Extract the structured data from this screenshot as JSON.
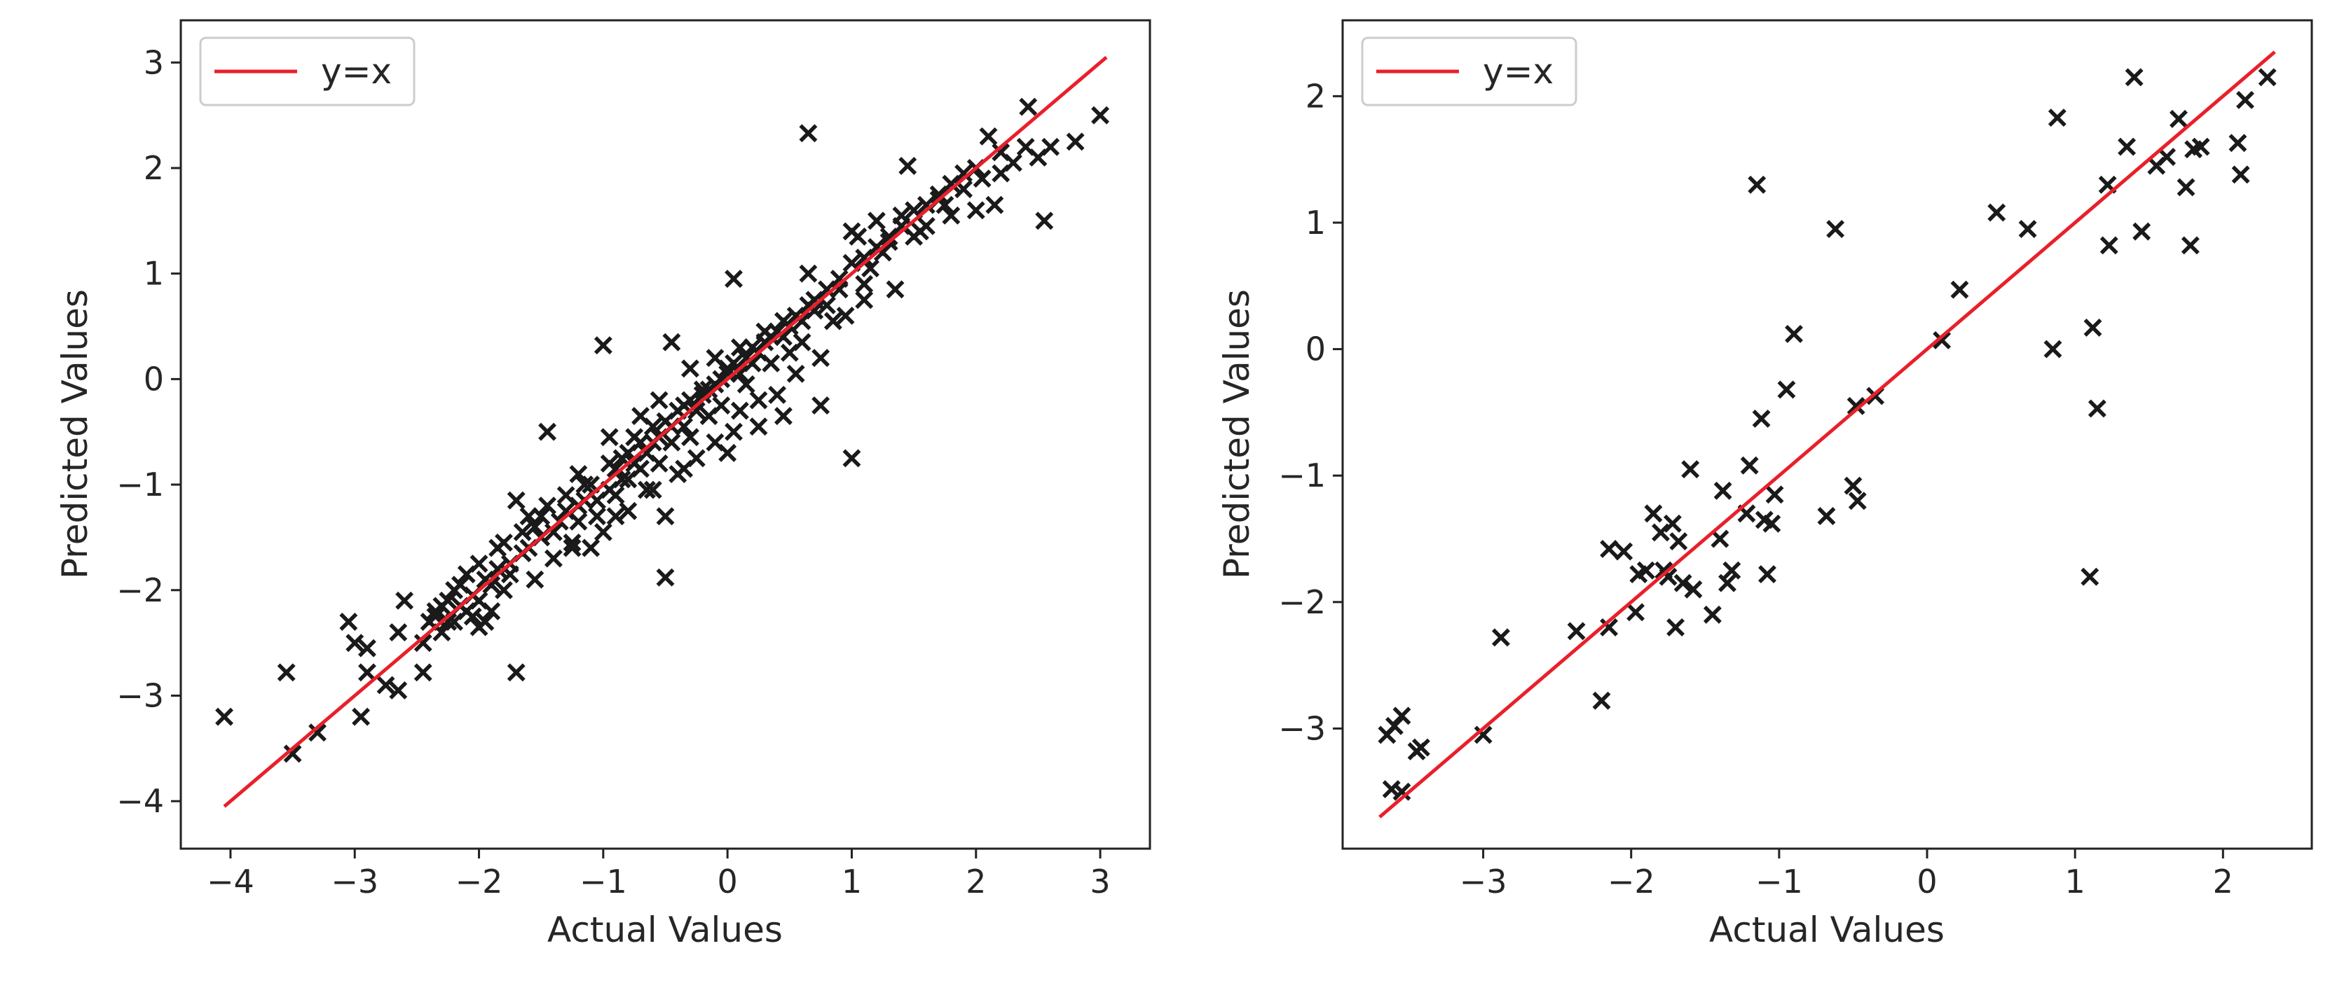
{
  "colors": {
    "marker": "#1a1a1a",
    "line": "#e8202a",
    "axes": "#222222",
    "legend_border": "#cccccc"
  },
  "chart_data": [
    {
      "type": "scatter",
      "xlabel": "Actual Values",
      "ylabel": "Predicted Values",
      "xlim": [
        -4.4,
        3.4
      ],
      "ylim": [
        -4.45,
        3.4
      ],
      "xticks": [
        -4,
        -3,
        -2,
        -1,
        0,
        1,
        2,
        3
      ],
      "yticks": [
        -4,
        -3,
        -2,
        -1,
        0,
        1,
        2,
        3
      ],
      "legend": {
        "label": "y=x",
        "placement": "upper-left"
      },
      "reference_line": [
        -4.05,
        3.05
      ],
      "points": [
        [
          -4.05,
          -3.2
        ],
        [
          -3.55,
          -2.78
        ],
        [
          -3.5,
          -3.55
        ],
        [
          -3.3,
          -3.35
        ],
        [
          -3.05,
          -2.3
        ],
        [
          -3.0,
          -2.5
        ],
        [
          -2.9,
          -2.55
        ],
        [
          -2.95,
          -3.2
        ],
        [
          -2.9,
          -2.78
        ],
        [
          -2.75,
          -2.9
        ],
        [
          -2.65,
          -2.95
        ],
        [
          -2.65,
          -2.4
        ],
        [
          -2.6,
          -2.1
        ],
        [
          -2.45,
          -2.78
        ],
        [
          -2.45,
          -2.5
        ],
        [
          -2.4,
          -2.3
        ],
        [
          -2.35,
          -2.25
        ],
        [
          -2.3,
          -2.15
        ],
        [
          -2.3,
          -2.4
        ],
        [
          -2.25,
          -2.1
        ],
        [
          -2.2,
          -2.3
        ],
        [
          -2.2,
          -2.0
        ],
        [
          -2.15,
          -1.95
        ],
        [
          -2.1,
          -2.2
        ],
        [
          -2.1,
          -1.85
        ],
        [
          -2.05,
          -2.05
        ],
        [
          -2.0,
          -2.35
        ],
        [
          -2.0,
          -1.75
        ],
        [
          -1.95,
          -1.9
        ],
        [
          -1.9,
          -2.2
        ],
        [
          -1.85,
          -1.8
        ],
        [
          -1.8,
          -2.0
        ],
        [
          -1.8,
          -1.55
        ],
        [
          -1.75,
          -1.75
        ],
        [
          -1.7,
          -2.78
        ],
        [
          -1.7,
          -1.15
        ],
        [
          -1.65,
          -1.65
        ],
        [
          -1.6,
          -1.3
        ],
        [
          -1.55,
          -1.9
        ],
        [
          -1.5,
          -1.5
        ],
        [
          -1.45,
          -0.5
        ],
        [
          -1.45,
          -1.2
        ],
        [
          -1.4,
          -1.7
        ],
        [
          -1.35,
          -1.35
        ],
        [
          -1.3,
          -1.1
        ],
        [
          -1.25,
          -1.55
        ],
        [
          -1.2,
          -1.2
        ],
        [
          -1.15,
          -1.0
        ],
        [
          -1.1,
          -1.6
        ],
        [
          -1.05,
          -1.3
        ],
        [
          -1.0,
          -1.45
        ],
        [
          -1.0,
          0.32
        ],
        [
          -0.95,
          -0.8
        ],
        [
          -0.9,
          -1.1
        ],
        [
          -0.85,
          -0.75
        ],
        [
          -0.8,
          -0.95
        ],
        [
          -0.8,
          -1.25
        ],
        [
          -0.75,
          -0.55
        ],
        [
          -0.7,
          -0.85
        ],
        [
          -0.7,
          -0.35
        ],
        [
          -0.65,
          -1.05
        ],
        [
          -0.6,
          -0.6
        ],
        [
          -0.55,
          -0.2
        ],
        [
          -0.55,
          -0.8
        ],
        [
          -0.5,
          -1.88
        ],
        [
          -0.5,
          -1.3
        ],
        [
          -0.45,
          -0.45
        ],
        [
          -0.45,
          0.35
        ],
        [
          -0.4,
          -0.9
        ],
        [
          -0.35,
          -0.25
        ],
        [
          -0.3,
          -0.55
        ],
        [
          -0.3,
          0.1
        ],
        [
          -0.25,
          -0.75
        ],
        [
          -0.2,
          -0.1
        ],
        [
          -0.15,
          -0.35
        ],
        [
          -0.1,
          0.2
        ],
        [
          -0.1,
          -0.6
        ],
        [
          -0.05,
          -0.25
        ],
        [
          0.0,
          0.05
        ],
        [
          0.05,
          -0.5
        ],
        [
          0.05,
          0.95
        ],
        [
          0.1,
          -0.3
        ],
        [
          0.1,
          0.3
        ],
        [
          0.15,
          -0.05
        ],
        [
          0.2,
          0.15
        ],
        [
          0.25,
          -0.45
        ],
        [
          0.3,
          0.45
        ],
        [
          0.35,
          0.15
        ],
        [
          0.4,
          -0.15
        ],
        [
          0.45,
          0.55
        ],
        [
          0.5,
          0.25
        ],
        [
          0.55,
          0.05
        ],
        [
          0.6,
          0.35
        ],
        [
          0.65,
          2.33
        ],
        [
          0.65,
          1.0
        ],
        [
          0.7,
          0.65
        ],
        [
          0.75,
          -0.25
        ],
        [
          0.8,
          0.7
        ],
        [
          0.85,
          0.55
        ],
        [
          0.9,
          0.85
        ],
        [
          0.95,
          0.6
        ],
        [
          1.0,
          -0.75
        ],
        [
          1.0,
          1.4
        ],
        [
          1.05,
          1.35
        ],
        [
          1.1,
          0.9
        ],
        [
          1.15,
          1.05
        ],
        [
          1.2,
          1.5
        ],
        [
          1.25,
          1.2
        ],
        [
          1.3,
          1.3
        ],
        [
          1.35,
          0.85
        ],
        [
          1.4,
          1.55
        ],
        [
          1.45,
          2.02
        ],
        [
          1.5,
          1.35
        ],
        [
          1.55,
          1.4
        ],
        [
          1.6,
          1.45
        ],
        [
          1.7,
          1.75
        ],
        [
          1.75,
          1.65
        ],
        [
          1.8,
          1.55
        ],
        [
          1.9,
          1.8
        ],
        [
          2.0,
          1.6
        ],
        [
          2.05,
          1.9
        ],
        [
          2.1,
          2.3
        ],
        [
          2.15,
          1.65
        ],
        [
          2.2,
          1.95
        ],
        [
          2.3,
          2.05
        ],
        [
          2.4,
          2.2
        ],
        [
          2.42,
          2.58
        ],
        [
          2.5,
          2.1
        ],
        [
          2.55,
          1.5
        ],
        [
          2.6,
          2.2
        ],
        [
          2.8,
          2.25
        ],
        [
          3.0,
          2.5
        ],
        [
          -2.35,
          -2.2
        ],
        [
          -2.25,
          -2.3
        ],
        [
          -2.15,
          -2.15
        ],
        [
          -2.0,
          -2.1
        ],
        [
          -1.9,
          -1.95
        ],
        [
          -1.75,
          -1.85
        ],
        [
          -1.6,
          -1.6
        ],
        [
          -1.55,
          -1.4
        ],
        [
          -1.4,
          -1.45
        ],
        [
          -1.3,
          -1.25
        ],
        [
          -1.2,
          -1.35
        ],
        [
          -1.15,
          -1.15
        ],
        [
          -1.1,
          -1.0
        ],
        [
          -1.05,
          -1.15
        ],
        [
          -0.95,
          -1.05
        ],
        [
          -0.9,
          -0.85
        ],
        [
          -0.85,
          -0.95
        ],
        [
          -0.8,
          -0.7
        ],
        [
          -0.75,
          -0.8
        ],
        [
          -0.7,
          -0.6
        ],
        [
          -0.65,
          -0.7
        ],
        [
          -0.6,
          -0.45
        ],
        [
          -0.55,
          -0.55
        ],
        [
          -0.5,
          -0.4
        ],
        [
          -0.45,
          -0.6
        ],
        [
          -0.4,
          -0.3
        ],
        [
          -0.35,
          -0.45
        ],
        [
          -0.3,
          -0.2
        ],
        [
          -0.25,
          -0.3
        ],
        [
          -0.2,
          -0.15
        ],
        [
          -0.15,
          -0.1
        ],
        [
          -0.1,
          -0.05
        ],
        [
          -0.05,
          0.0
        ],
        [
          0.0,
          0.1
        ],
        [
          0.05,
          0.15
        ],
        [
          0.1,
          0.05
        ],
        [
          0.15,
          0.2
        ],
        [
          0.2,
          0.3
        ],
        [
          0.25,
          0.25
        ],
        [
          0.3,
          0.35
        ],
        [
          0.35,
          0.4
        ],
        [
          0.4,
          0.45
        ],
        [
          0.45,
          0.4
        ],
        [
          0.5,
          0.5
        ],
        [
          0.55,
          0.6
        ],
        [
          0.6,
          0.55
        ],
        [
          0.65,
          0.7
        ],
        [
          0.7,
          0.75
        ],
        [
          0.8,
          0.85
        ],
        [
          0.9,
          0.95
        ],
        [
          1.0,
          1.1
        ],
        [
          1.1,
          1.15
        ],
        [
          1.2,
          1.25
        ],
        [
          1.3,
          1.35
        ],
        [
          1.4,
          1.45
        ],
        [
          1.5,
          1.6
        ],
        [
          1.6,
          1.65
        ],
        [
          1.7,
          1.7
        ],
        [
          1.8,
          1.85
        ],
        [
          1.9,
          1.95
        ],
        [
          2.0,
          2.0
        ],
        [
          2.2,
          2.15
        ],
        [
          -1.95,
          -2.3
        ],
        [
          -1.65,
          -1.45
        ],
        [
          -1.25,
          -1.6
        ],
        [
          -0.9,
          -1.3
        ],
        [
          -0.6,
          -1.05
        ],
        [
          -0.35,
          -0.85
        ],
        [
          0.0,
          -0.7
        ],
        [
          0.25,
          -0.2
        ],
        [
          0.45,
          -0.35
        ],
        [
          0.75,
          0.2
        ],
        [
          1.1,
          0.75
        ],
        [
          -2.05,
          -2.25
        ],
        [
          -1.85,
          -1.6
        ],
        [
          -1.5,
          -1.3
        ],
        [
          -1.2,
          -0.9
        ],
        [
          -0.95,
          -0.55
        ]
      ]
    },
    {
      "type": "scatter",
      "xlabel": "Actual Values",
      "ylabel": "Predicted Values",
      "xlim": [
        -3.95,
        2.6
      ],
      "ylim": [
        -3.95,
        2.6
      ],
      "xticks": [
        -3,
        -2,
        -1,
        0,
        1,
        2
      ],
      "yticks": [
        -3,
        -2,
        -1,
        0,
        1,
        2
      ],
      "legend": {
        "label": "y=x",
        "placement": "upper-left"
      },
      "reference_line": [
        -3.7,
        2.35
      ],
      "points": [
        [
          -3.65,
          -3.05
        ],
        [
          -3.6,
          -2.98
        ],
        [
          -3.55,
          -2.9
        ],
        [
          -3.62,
          -3.48
        ],
        [
          -3.55,
          -3.5
        ],
        [
          -3.45,
          -3.18
        ],
        [
          -3.42,
          -3.15
        ],
        [
          -3.0,
          -3.05
        ],
        [
          -2.88,
          -2.28
        ],
        [
          -2.37,
          -2.23
        ],
        [
          -2.2,
          -2.78
        ],
        [
          -2.15,
          -2.2
        ],
        [
          -2.15,
          -1.58
        ],
        [
          -2.05,
          -1.6
        ],
        [
          -1.97,
          -2.08
        ],
        [
          -1.95,
          -1.78
        ],
        [
          -1.9,
          -1.75
        ],
        [
          -1.85,
          -1.3
        ],
        [
          -1.8,
          -1.45
        ],
        [
          -1.78,
          -1.75
        ],
        [
          -1.75,
          -1.8
        ],
        [
          -1.72,
          -1.38
        ],
        [
          -1.7,
          -2.2
        ],
        [
          -1.68,
          -1.52
        ],
        [
          -1.65,
          -1.85
        ],
        [
          -1.6,
          -0.95
        ],
        [
          -1.58,
          -1.9
        ],
        [
          -1.45,
          -2.1
        ],
        [
          -1.4,
          -1.5
        ],
        [
          -1.38,
          -1.12
        ],
        [
          -1.35,
          -1.85
        ],
        [
          -1.32,
          -1.75
        ],
        [
          -1.22,
          -1.3
        ],
        [
          -1.2,
          -0.92
        ],
        [
          -1.15,
          1.3
        ],
        [
          -1.12,
          -0.55
        ],
        [
          -1.1,
          -1.35
        ],
        [
          -1.08,
          -1.78
        ],
        [
          -1.05,
          -1.38
        ],
        [
          -1.03,
          -1.15
        ],
        [
          -0.95,
          -0.32
        ],
        [
          -0.9,
          0.12
        ],
        [
          -0.68,
          -1.32
        ],
        [
          -0.62,
          0.95
        ],
        [
          -0.5,
          -1.08
        ],
        [
          -0.48,
          -0.45
        ],
        [
          -0.47,
          -1.2
        ],
        [
          -0.35,
          -0.37
        ],
        [
          0.1,
          0.07
        ],
        [
          0.22,
          0.47
        ],
        [
          0.47,
          1.08
        ],
        [
          0.68,
          0.95
        ],
        [
          0.85,
          0.0
        ],
        [
          0.88,
          1.83
        ],
        [
          1.12,
          0.17
        ],
        [
          1.1,
          -1.8
        ],
        [
          1.15,
          -0.47
        ],
        [
          1.22,
          1.3
        ],
        [
          1.23,
          0.82
        ],
        [
          1.35,
          1.6
        ],
        [
          1.4,
          2.15
        ],
        [
          1.45,
          0.93
        ],
        [
          1.55,
          1.45
        ],
        [
          1.62,
          1.52
        ],
        [
          1.7,
          1.82
        ],
        [
          1.75,
          1.28
        ],
        [
          1.78,
          0.82
        ],
        [
          1.8,
          1.58
        ],
        [
          1.85,
          1.6
        ],
        [
          2.1,
          1.63
        ],
        [
          2.12,
          1.38
        ],
        [
          2.15,
          1.97
        ],
        [
          2.3,
          2.15
        ]
      ]
    }
  ]
}
